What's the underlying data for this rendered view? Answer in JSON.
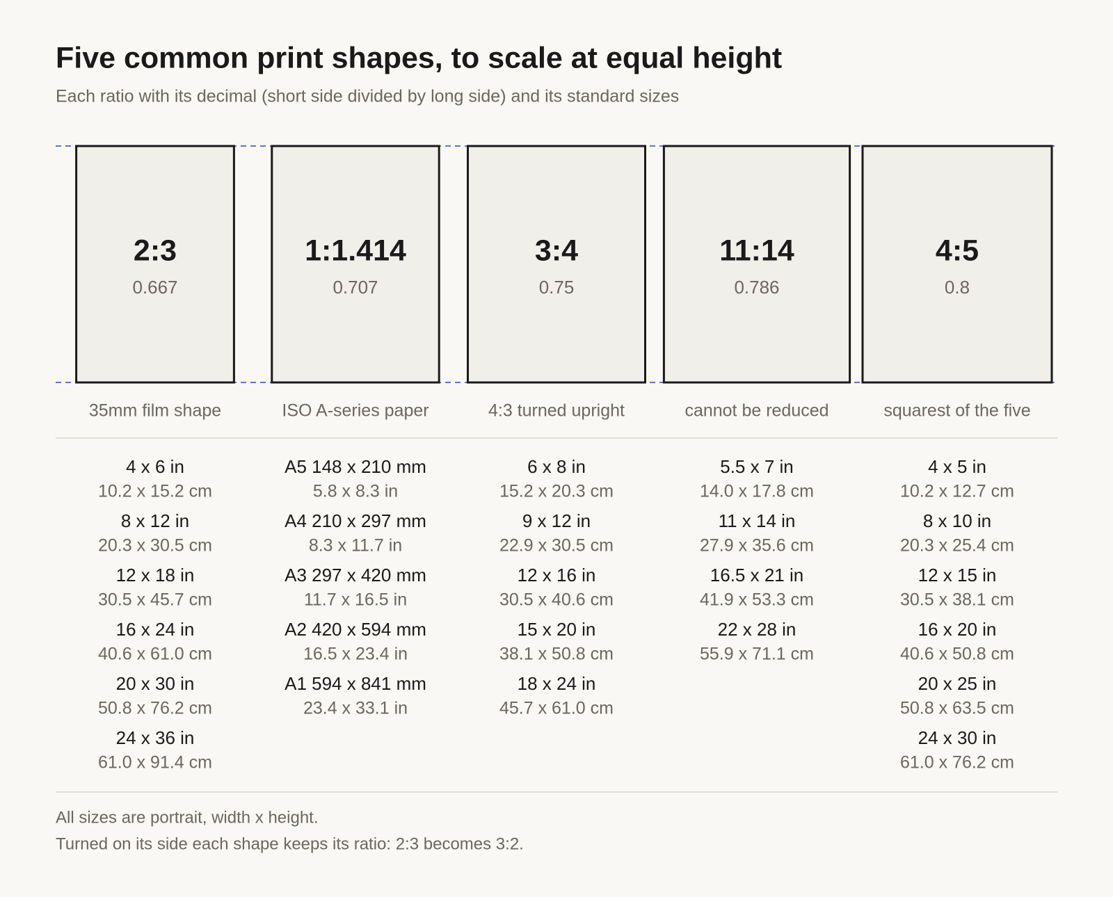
{
  "title": "Five common print shapes, to scale at equal height",
  "subtitle": "Each ratio with its decimal (short side divided by long side) and its standard sizes",
  "shapes": [
    {
      "ratio": "2:3",
      "decimal": 0.667,
      "caption": "35mm film shape",
      "sizes": [
        {
          "main": "4 x 6 in",
          "alt": "10.2 x 15.2 cm"
        },
        {
          "main": "8 x 12 in",
          "alt": "20.3 x 30.5 cm"
        },
        {
          "main": "12 x 18 in",
          "alt": "30.5 x 45.7 cm"
        },
        {
          "main": "16 x 24 in",
          "alt": "40.6 x 61.0 cm"
        },
        {
          "main": "20 x 30 in",
          "alt": "50.8 x 76.2 cm"
        },
        {
          "main": "24 x 36 in",
          "alt": "61.0 x 91.4 cm"
        }
      ]
    },
    {
      "ratio": "1:1.414",
      "decimal": 0.707,
      "caption": "ISO A-series paper",
      "sizes": [
        {
          "main": "A5 148 x 210 mm",
          "alt": "5.8 x 8.3 in"
        },
        {
          "main": "A4 210 x 297 mm",
          "alt": "8.3 x 11.7 in"
        },
        {
          "main": "A3 297 x 420 mm",
          "alt": "11.7 x 16.5 in"
        },
        {
          "main": "A2 420 x 594 mm",
          "alt": "16.5 x 23.4 in"
        },
        {
          "main": "A1 594 x 841 mm",
          "alt": "23.4 x 33.1 in"
        }
      ]
    },
    {
      "ratio": "3:4",
      "decimal": 0.75,
      "caption": "4:3 turned upright",
      "sizes": [
        {
          "main": "6 x 8 in",
          "alt": "15.2 x 20.3 cm"
        },
        {
          "main": "9 x 12 in",
          "alt": "22.9 x 30.5 cm"
        },
        {
          "main": "12 x 16 in",
          "alt": "30.5 x 40.6 cm"
        },
        {
          "main": "15 x 20 in",
          "alt": "38.1 x 50.8 cm"
        },
        {
          "main": "18 x 24 in",
          "alt": "45.7 x 61.0 cm"
        }
      ]
    },
    {
      "ratio": "11:14",
      "decimal": 0.786,
      "caption": "cannot be reduced",
      "sizes": [
        {
          "main": "5.5 x 7 in",
          "alt": "14.0 x 17.8 cm"
        },
        {
          "main": "11 x 14 in",
          "alt": "27.9 x 35.6 cm"
        },
        {
          "main": "16.5 x 21 in",
          "alt": "41.9 x 53.3 cm"
        },
        {
          "main": "22 x 28 in",
          "alt": "55.9 x 71.1 cm"
        }
      ]
    },
    {
      "ratio": "4:5",
      "decimal": 0.8,
      "caption": "squarest of the five",
      "sizes": [
        {
          "main": "4 x 5 in",
          "alt": "10.2 x 12.7 cm"
        },
        {
          "main": "8 x 10 in",
          "alt": "20.3 x 25.4 cm"
        },
        {
          "main": "12 x 15 in",
          "alt": "30.5 x 38.1 cm"
        },
        {
          "main": "16 x 20 in",
          "alt": "40.6 x 50.8 cm"
        },
        {
          "main": "20 x 25 in",
          "alt": "50.8 x 63.5 cm"
        },
        {
          "main": "24 x 30 in",
          "alt": "61.0 x 76.2 cm"
        }
      ]
    }
  ],
  "footer": [
    "All sizes are portrait, width x height.",
    "Turned on its side each shape keeps its ratio: 2:3 becomes 3:2."
  ]
}
